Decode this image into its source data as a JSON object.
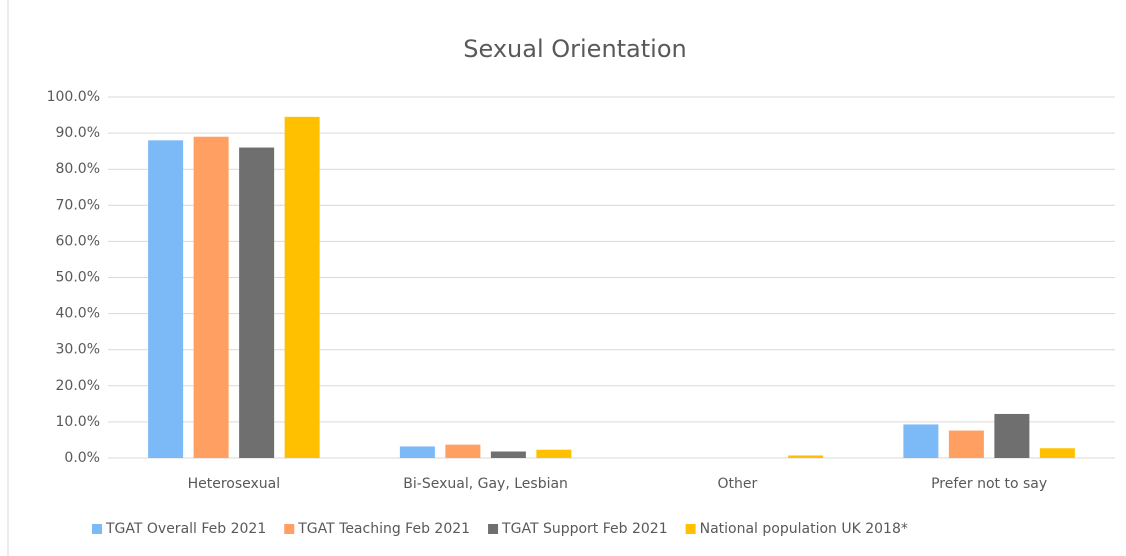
{
  "chart_data": {
    "type": "bar",
    "title": "Sexual Orientation",
    "categories": [
      "Heterosexual",
      "Bi-Sexual, Gay, Lesbian",
      "Other",
      "Prefer not to say"
    ],
    "series": [
      {
        "name": "TGAT Overall Feb 2021",
        "color": "#7cbaf7",
        "values": [
          88,
          3.2,
          0,
          9.3
        ]
      },
      {
        "name": "TGAT Teaching Feb 2021",
        "color": "#ffa062",
        "values": [
          89,
          3.7,
          0,
          7.6
        ]
      },
      {
        "name": "TGAT Support Feb 2021",
        "color": "#6f6f6f",
        "values": [
          86,
          1.8,
          0,
          12.2
        ]
      },
      {
        "name": "National population UK 2018*",
        "color": "#ffc000",
        "values": [
          94.5,
          2.3,
          0.7,
          2.7
        ]
      }
    ],
    "ylim": [
      0,
      100
    ],
    "yticks": [
      {
        "value": 0,
        "label": "0.0%"
      },
      {
        "value": 10,
        "label": "10.0%"
      },
      {
        "value": 20,
        "label": "20.0%"
      },
      {
        "value": 30,
        "label": "30.0%"
      },
      {
        "value": 40,
        "label": "40.0%"
      },
      {
        "value": 50,
        "label": "50.0%"
      },
      {
        "value": 60,
        "label": "60.0%"
      },
      {
        "value": 70,
        "label": "70.0%"
      },
      {
        "value": 80,
        "label": "80.0%"
      },
      {
        "value": 90,
        "label": "90.0%"
      },
      {
        "value": 100,
        "label": "100.0%"
      }
    ],
    "grid": true,
    "legend": "bottom"
  }
}
